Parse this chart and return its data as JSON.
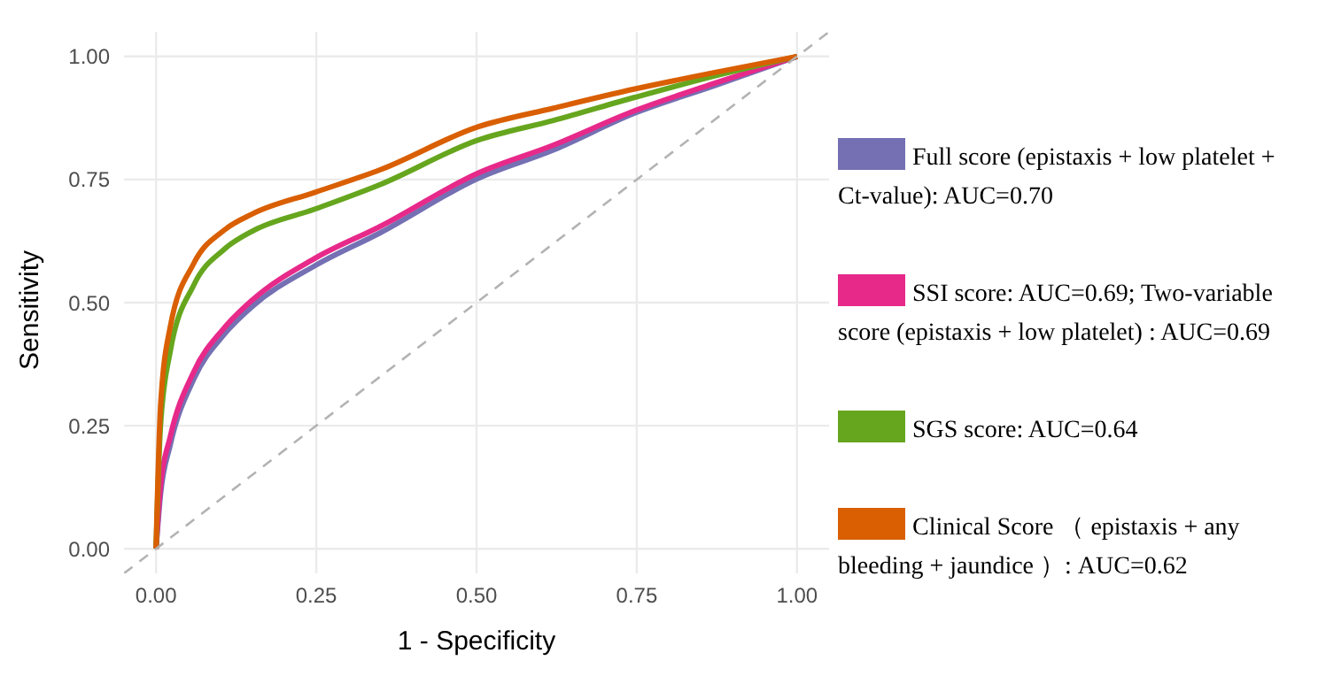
{
  "chart_data": {
    "type": "line",
    "xlabel": "1 - Specificity",
    "ylabel": "Sensitivity",
    "x": [
      0,
      0.007,
      0.022,
      0.059,
      0.106,
      0.15,
      0.248,
      0.35,
      0.502,
      0.62,
      0.747,
      0.87,
      1
    ],
    "series": [
      {
        "name": "Full score (epistaxis + low platelet + Ct-value): AUC=0.70",
        "color": "#7570b3",
        "values": [
          0,
          0.11,
          0.21,
          0.345,
          0.435,
          0.492,
          0.575,
          0.642,
          0.752,
          0.81,
          0.885,
          0.94,
          1
        ]
      },
      {
        "name": "SSI score: AUC=0.69; Two-variable score (epistaxis + low platelet) : AUC=0.69",
        "color": "#e7298a",
        "values": [
          0,
          0.128,
          0.227,
          0.36,
          0.448,
          0.505,
          0.59,
          0.655,
          0.763,
          0.82,
          0.89,
          0.945,
          1
        ]
      },
      {
        "name": "SGS score: AUC=0.64",
        "color": "#66a61e",
        "values": [
          0,
          0.25,
          0.4,
          0.536,
          0.608,
          0.645,
          0.69,
          0.74,
          0.83,
          0.87,
          0.917,
          0.96,
          1
        ]
      },
      {
        "name": "Clinical Score （ epistaxis + any bleeding + jaundice ）: AUC=0.62",
        "color": "#d95f02",
        "values": [
          0,
          0.29,
          0.45,
          0.58,
          0.647,
          0.68,
          0.724,
          0.77,
          0.857,
          0.895,
          0.934,
          0.967,
          1
        ]
      },
      {
        "type": "line",
        "color": "#b3b3b3",
        "line_style": "dashed",
        "x": [
          -0.05,
          1.05
        ],
        "values": [
          -0.05,
          1.05
        ]
      }
    ],
    "xlim": [
      -0.05,
      1.05
    ],
    "ylim": [
      -0.05,
      1.05
    ],
    "xticks": [
      {
        "value": 0,
        "label": "0.00"
      },
      {
        "value": 0.25,
        "label": "0.25"
      },
      {
        "value": 0.5,
        "label": "0.50"
      },
      {
        "value": 0.75,
        "label": "0.75"
      },
      {
        "value": 1,
        "label": "1.00"
      }
    ],
    "yticks": [
      {
        "value": 0,
        "label": "0.00"
      },
      {
        "value": 0.25,
        "label": "0.25"
      },
      {
        "value": 0.5,
        "label": "0.50"
      },
      {
        "value": 0.75,
        "label": "0.75"
      },
      {
        "value": 1,
        "label": "1.00"
      }
    ],
    "grid": true,
    "legend": "right",
    "line_style": "solid",
    "marker": "none"
  }
}
